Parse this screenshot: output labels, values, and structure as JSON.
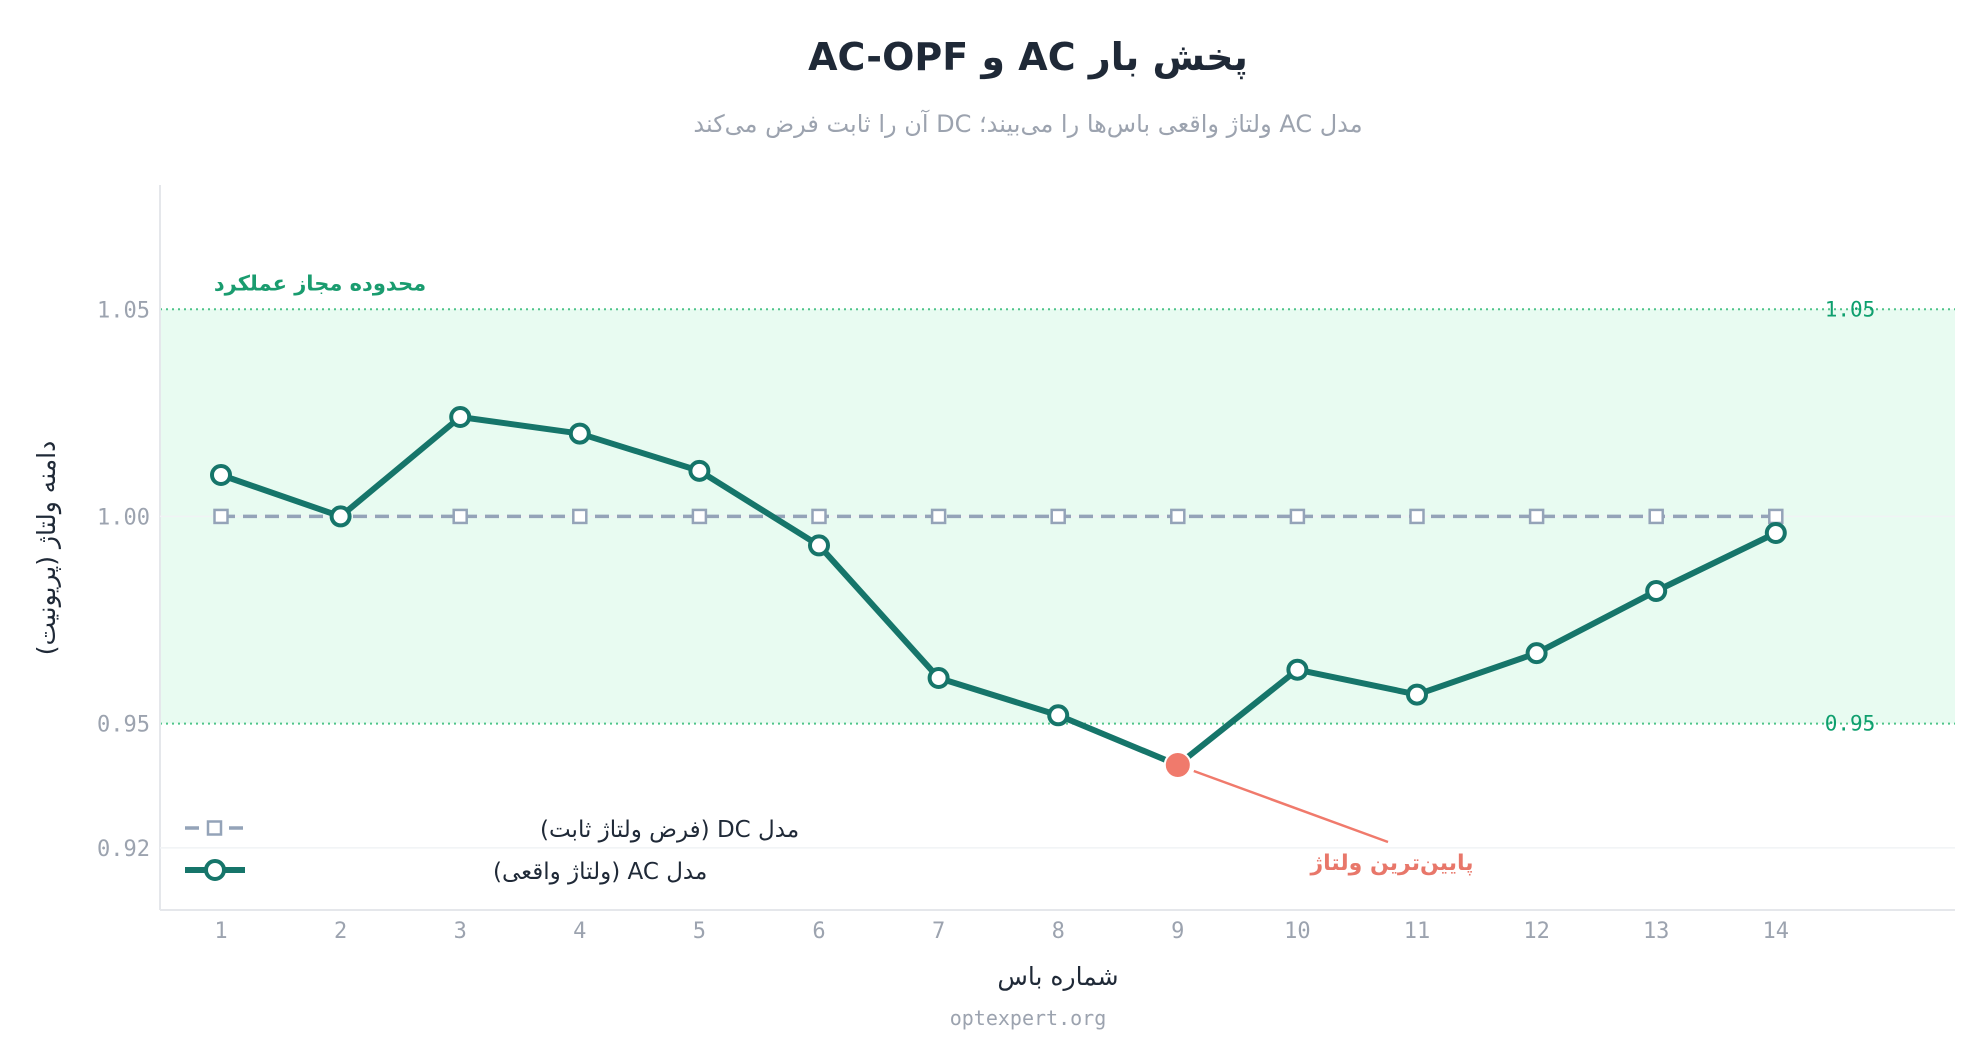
{
  "title": "پخش بار AC و AC-OPF",
  "subtitle": "مدل AC ولتاژ واقعی باس‌ها را می‌بیند؛ DC آن را ثابت فرض می‌کند",
  "source": "optexpert.org",
  "colors": {
    "ac": "#16756a",
    "dc": "#94a3b8",
    "band": "#e8fbf1",
    "ref": "#4fc48a",
    "highlight": "#f07a6c"
  },
  "chart_data": {
    "type": "line",
    "xlabel": "شماره باس",
    "ylabel": "دامنه ولتاژ (پریونیت)",
    "categories": [
      "1",
      "2",
      "3",
      "4",
      "5",
      "6",
      "7",
      "8",
      "9",
      "10",
      "11",
      "12",
      "13",
      "14"
    ],
    "x": [
      1,
      2,
      3,
      4,
      5,
      6,
      7,
      8,
      9,
      10,
      11,
      12,
      13,
      14
    ],
    "y_ticks": [
      "0.92",
      "0.95",
      "1.00",
      "1.05"
    ],
    "ylim": [
      0.905,
      1.08
    ],
    "series": [
      {
        "name": "مدل DC (فرض ولتاژ ثابت)",
        "style": "dashed-square",
        "values": [
          1.0,
          1.0,
          1.0,
          1.0,
          1.0,
          1.0,
          1.0,
          1.0,
          1.0,
          1.0,
          1.0,
          1.0,
          1.0,
          1.0
        ]
      },
      {
        "name": "مدل AC (ولتاژ واقعی)",
        "style": "solid-circle",
        "values": [
          1.01,
          1.0,
          1.024,
          1.02,
          1.011,
          0.993,
          0.961,
          0.952,
          0.94,
          0.963,
          0.957,
          0.967,
          0.982,
          0.996
        ]
      }
    ],
    "band": {
      "label": "محدوده مجاز عملکرد",
      "low": 0.95,
      "high": 1.05,
      "low_label": "0.95",
      "high_label": "1.05"
    },
    "annotation": {
      "text": "پایین‌ترین ولتاژ",
      "x": 9,
      "y": 0.94
    },
    "legend": "bottom-left",
    "grid": false
  }
}
